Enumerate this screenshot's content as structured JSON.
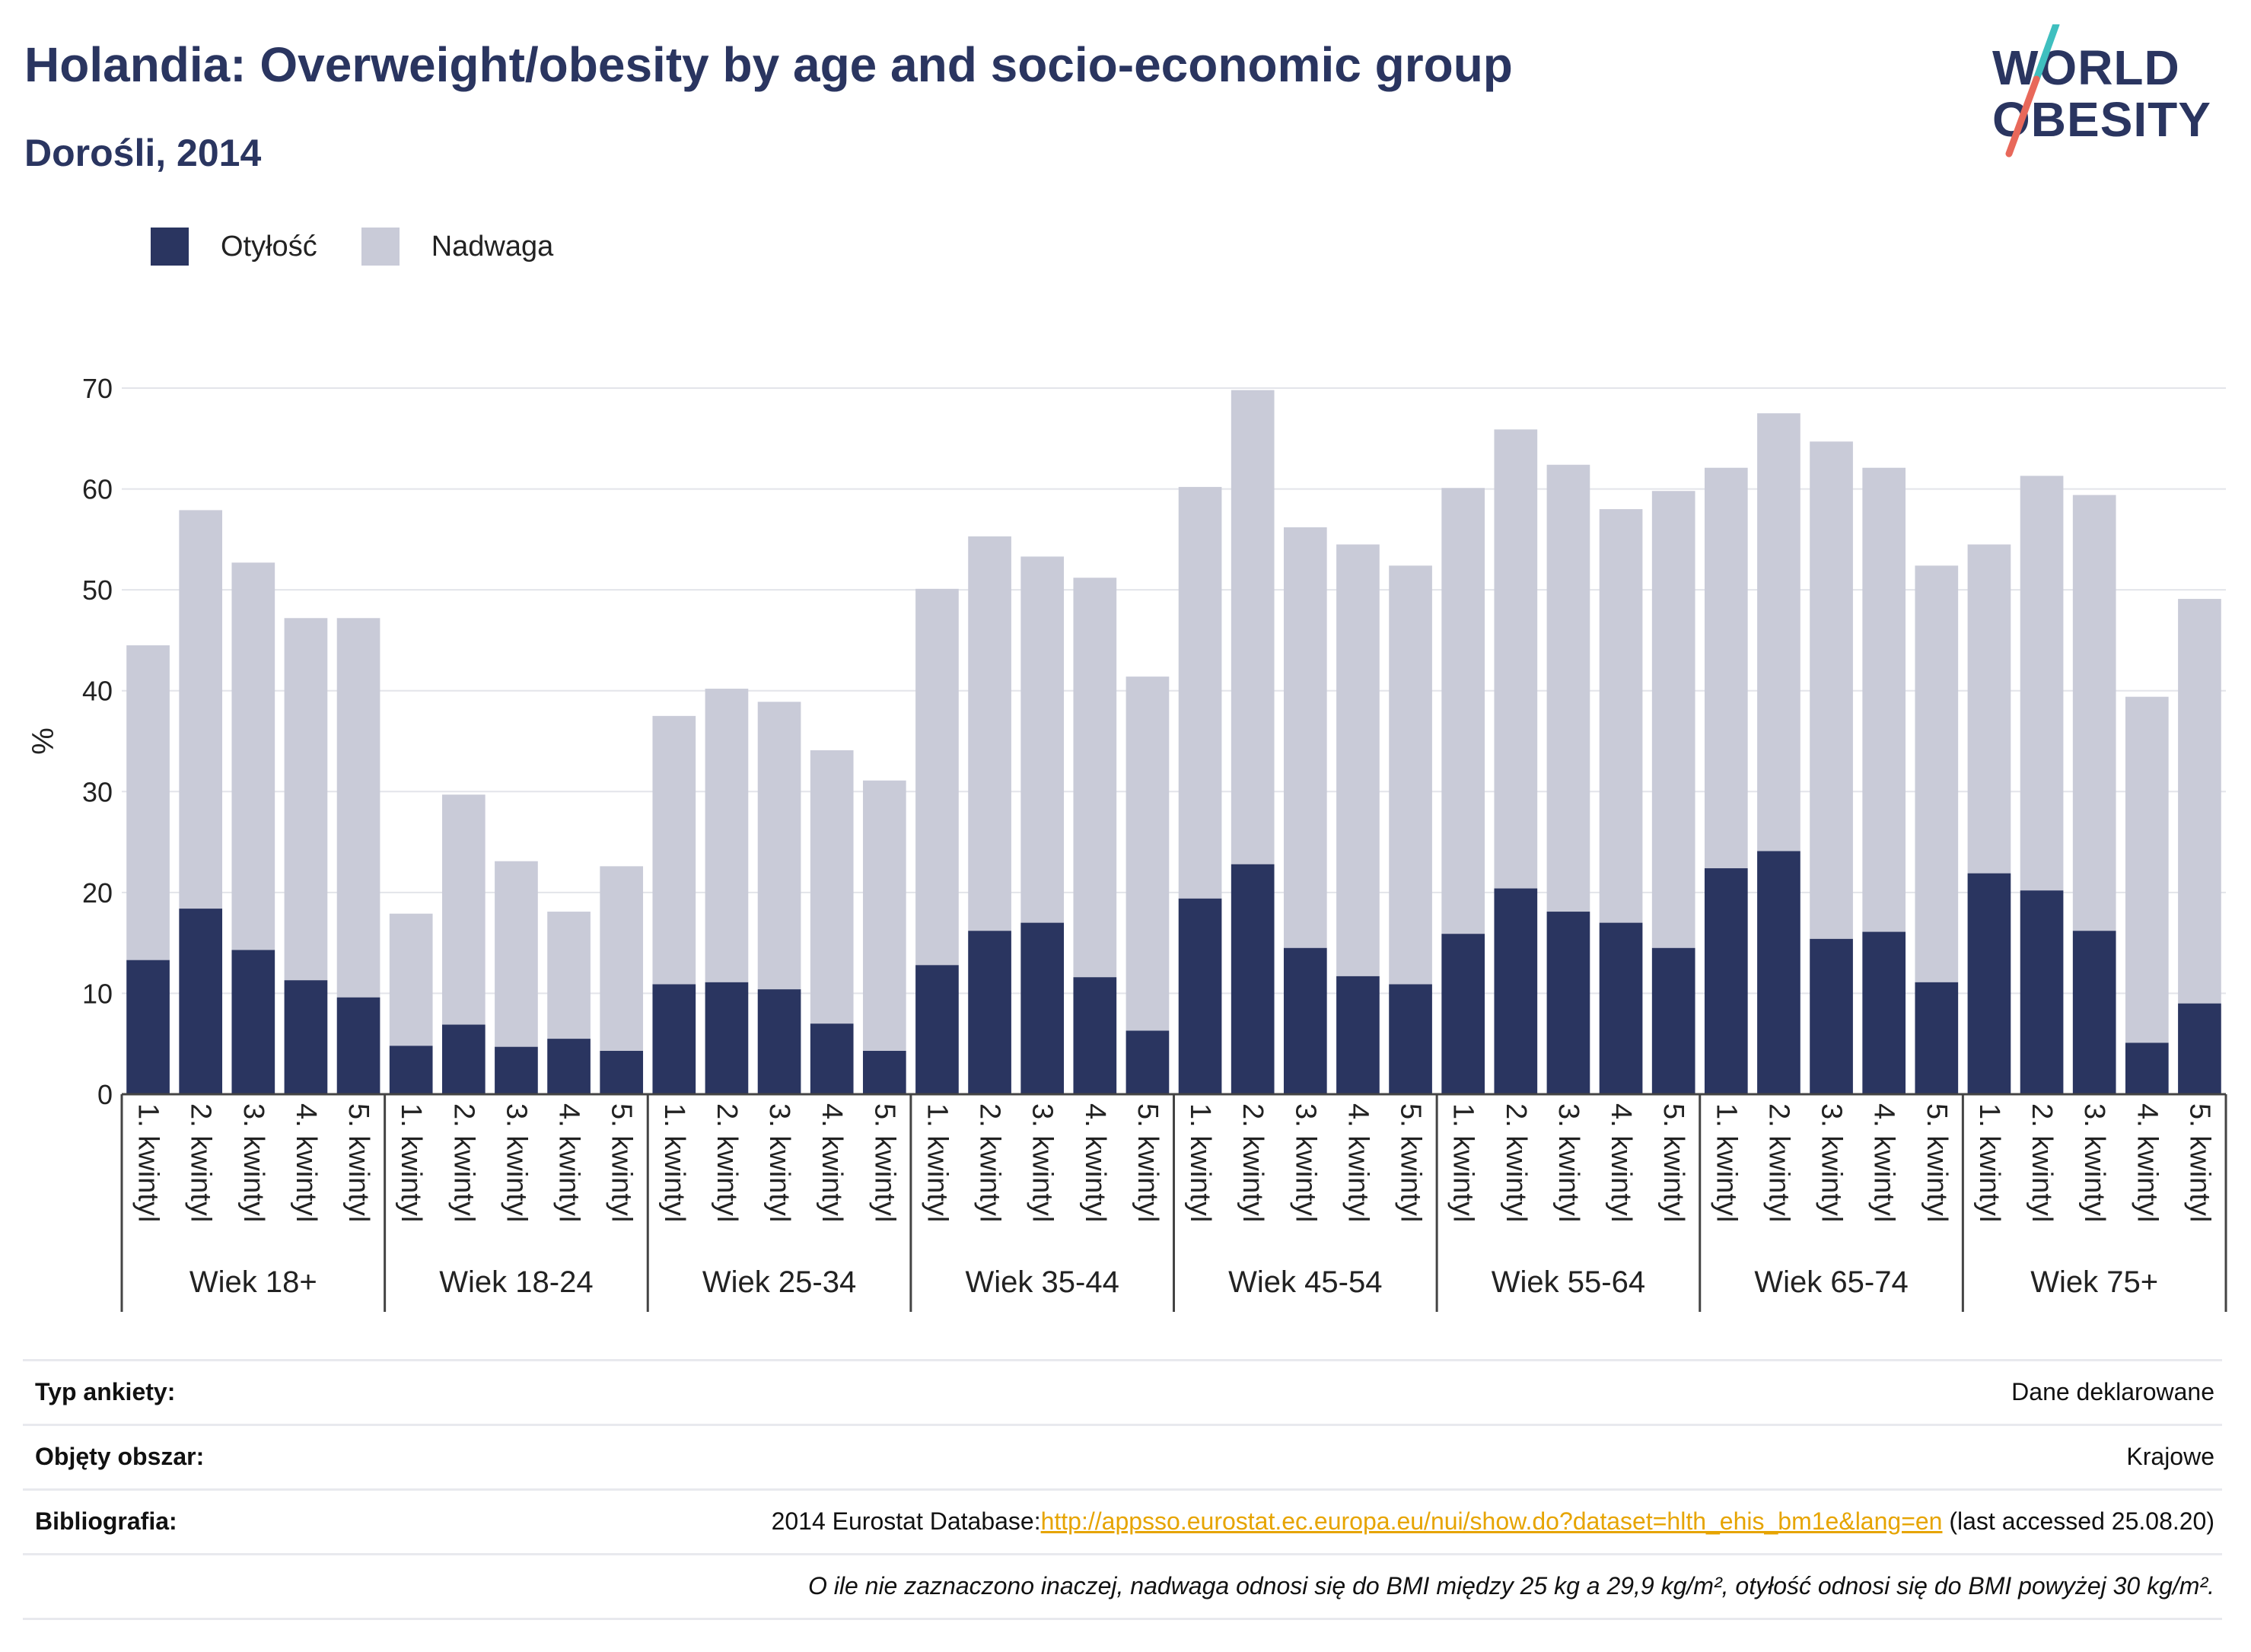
{
  "header": {
    "title": "Holandia: Overweight/obesity by age and socio-economic group",
    "subtitle": "Dorośli, 2014"
  },
  "logo": {
    "line1": "WORLD",
    "line2": "OBESITY",
    "color_text": "#2a3560",
    "color_slash_top": "#3fbfbf",
    "color_slash_bottom": "#e8685a"
  },
  "legend": {
    "items": [
      {
        "label": "Otyłość",
        "color": "#2a3560"
      },
      {
        "label": "Nadwaga",
        "color": "#c9cbd8"
      }
    ]
  },
  "chart_data": {
    "type": "bar",
    "stacked": true,
    "ylabel": "%",
    "ylim": [
      0,
      70
    ],
    "yticks": [
      0,
      10,
      20,
      30,
      40,
      50,
      60,
      70
    ],
    "grid": true,
    "legend_position": "top-left",
    "groups": [
      "Wiek 18+",
      "Wiek 18-24",
      "Wiek 25-34",
      "Wiek 35-44",
      "Wiek 45-54",
      "Wiek 55-64",
      "Wiek 65-74",
      "Wiek 75+"
    ],
    "categories": [
      "1. kwintyl",
      "2. kwintyl",
      "3. kwintyl",
      "4. kwintyl",
      "5. kwintyl"
    ],
    "series": [
      {
        "name": "Otyłość",
        "color": "#2a3560",
        "values": [
          [
            13.3,
            18.4,
            14.3,
            11.3,
            9.6
          ],
          [
            4.8,
            6.9,
            4.7,
            5.5,
            4.3
          ],
          [
            10.9,
            11.1,
            10.4,
            7.0,
            4.3
          ],
          [
            12.8,
            16.2,
            17.0,
            11.6,
            6.3
          ],
          [
            19.4,
            22.8,
            14.5,
            11.7,
            10.9
          ],
          [
            15.9,
            20.4,
            18.1,
            17.0,
            14.5
          ],
          [
            22.4,
            24.1,
            15.4,
            16.1,
            11.1
          ],
          [
            21.9,
            20.2,
            16.2,
            5.1,
            9.0
          ]
        ]
      },
      {
        "name": "Nadwaga",
        "color": "#c9cbd8",
        "values": [
          [
            31.2,
            39.5,
            38.4,
            35.9,
            37.6
          ],
          [
            13.1,
            22.8,
            18.4,
            12.6,
            18.3
          ],
          [
            26.6,
            29.1,
            28.5,
            27.1,
            26.8
          ],
          [
            37.3,
            39.1,
            36.3,
            39.6,
            35.1
          ],
          [
            40.8,
            47.0,
            41.7,
            42.8,
            41.5
          ],
          [
            44.2,
            45.5,
            44.3,
            41.0,
            45.3
          ],
          [
            39.7,
            43.4,
            49.3,
            46.0,
            41.3
          ],
          [
            32.6,
            41.1,
            43.2,
            34.3,
            40.1
          ]
        ]
      }
    ]
  },
  "info": {
    "survey_type": {
      "label": "Typ ankiety:",
      "value": "Dane deklarowane"
    },
    "area": {
      "label": "Objęty obszar:",
      "value": "Krajowe"
    },
    "bibliography": {
      "label": "Bibliografia:",
      "prefix": "2014 Eurostat Database:",
      "link": "http://appsso.eurostat.ec.europa.eu/nui/show.do?dataset=hlth_ehis_bm1e&lang=en",
      "suffix": " (last accessed 25.08.20)"
    },
    "note": "O ile nie zaznaczono inaczej, nadwaga odnosi się do BMI między 25 kg a 29,9 kg/m², otyłość odnosi się do BMI powyżej 30 kg/m²."
  }
}
